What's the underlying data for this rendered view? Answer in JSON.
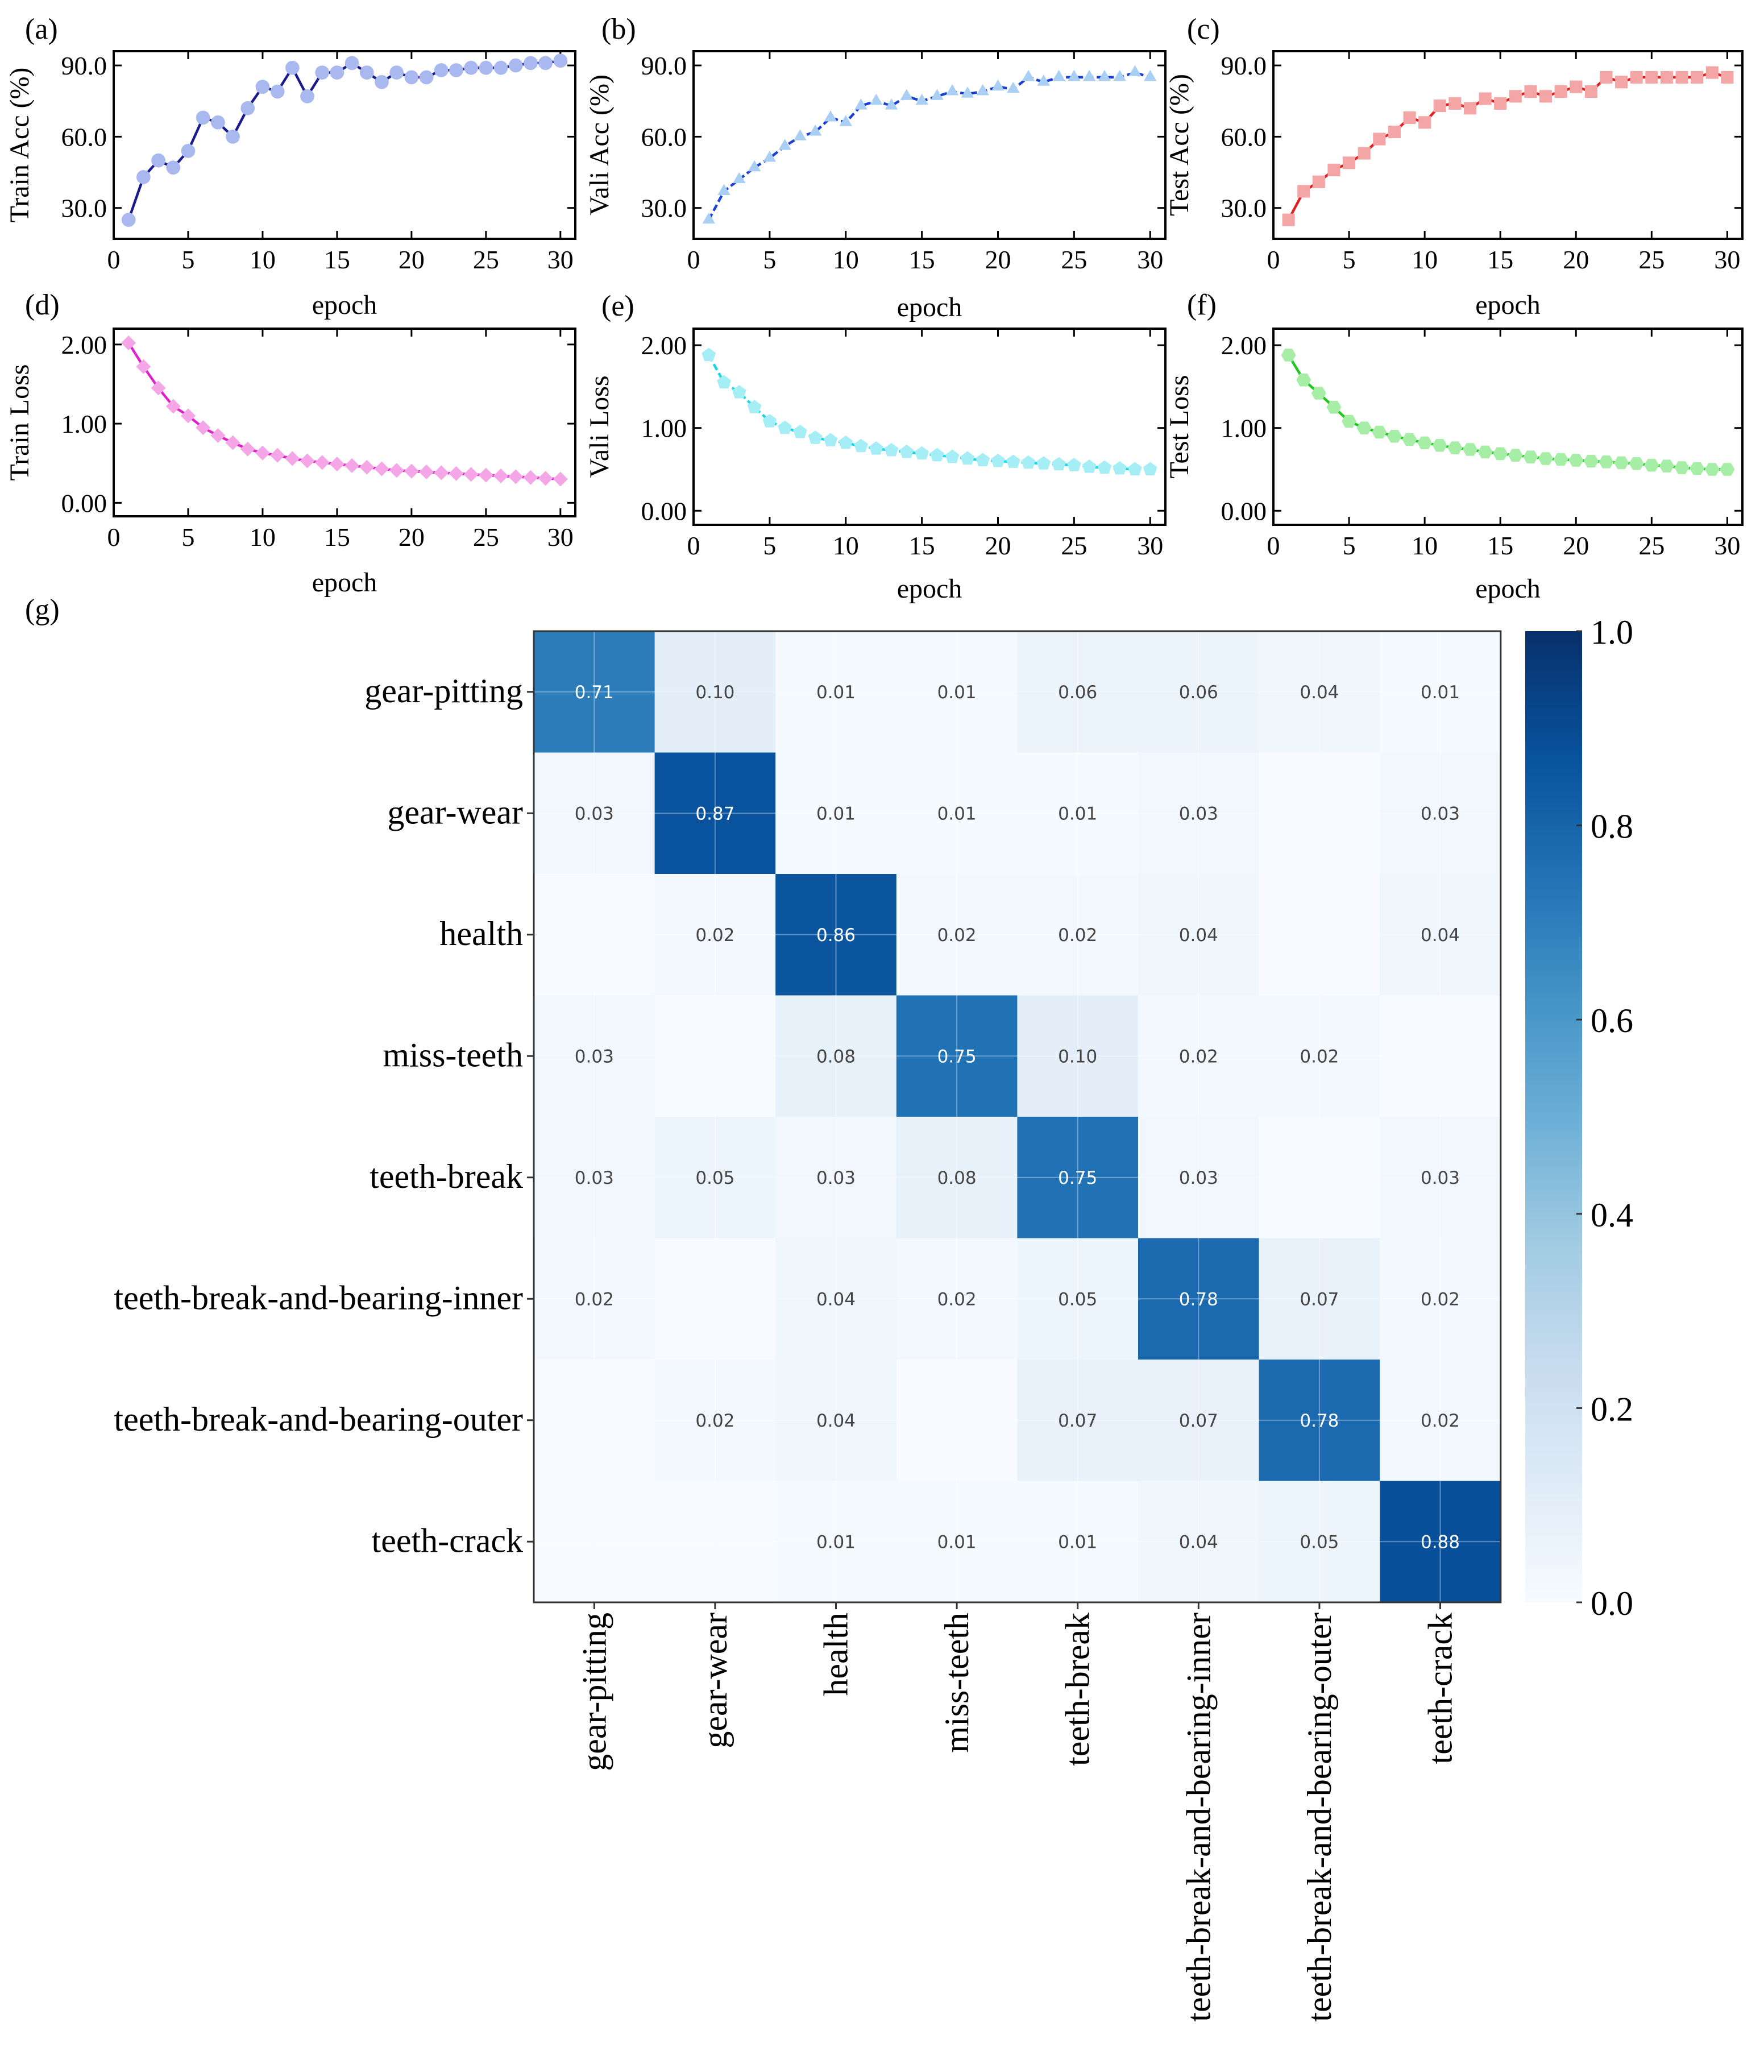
{
  "chart_data": [
    {
      "panel": "(a)",
      "type": "line",
      "title": "",
      "xlabel": "epoch",
      "ylabel": "Train Acc (%)",
      "xlim": [
        0,
        31
      ],
      "ylim": [
        17,
        96
      ],
      "xticks": [
        0,
        5,
        10,
        15,
        20,
        25,
        30
      ],
      "xtick_labels": [
        "0",
        "5",
        "10",
        "15",
        "20",
        "25",
        "30"
      ],
      "yticks": [
        30,
        60,
        90
      ],
      "ytick_labels": [
        "30.0",
        "60.0",
        "90.0"
      ],
      "line_color": "#1a1a8c",
      "marker_color": "#aab8f0",
      "marker": "circle",
      "dashed": false,
      "x": [
        1,
        2,
        3,
        4,
        5,
        6,
        7,
        8,
        9,
        10,
        11,
        12,
        13,
        14,
        15,
        16,
        17,
        18,
        19,
        20,
        21,
        22,
        23,
        24,
        25,
        26,
        27,
        28,
        29,
        30
      ],
      "y": [
        25,
        43,
        50,
        47,
        54,
        68,
        66,
        60,
        72,
        81,
        79,
        89,
        77,
        87,
        87,
        91,
        87,
        83,
        87,
        85,
        85,
        88,
        88,
        89,
        89,
        89,
        90,
        91,
        91,
        92
      ]
    },
    {
      "panel": "(b)",
      "type": "line",
      "title": "",
      "xlabel": "epoch",
      "ylabel": "Vali Acc (%)",
      "xlim": [
        0,
        31
      ],
      "ylim": [
        17,
        96
      ],
      "xticks": [
        0,
        5,
        10,
        15,
        20,
        25,
        30
      ],
      "xtick_labels": [
        "0",
        "5",
        "10",
        "15",
        "20",
        "25",
        "30"
      ],
      "yticks": [
        30,
        60,
        90
      ],
      "ytick_labels": [
        "30.0",
        "60.0",
        "90.0"
      ],
      "line_color": "#1a3fd6",
      "marker_color": "#a9cff5",
      "marker": "triangle",
      "dashed": true,
      "x": [
        1,
        2,
        3,
        4,
        5,
        6,
        7,
        8,
        9,
        10,
        11,
        12,
        13,
        14,
        15,
        16,
        17,
        18,
        19,
        20,
        21,
        22,
        23,
        24,
        25,
        26,
        27,
        28,
        29,
        30
      ],
      "y": [
        25,
        37,
        42,
        47,
        51,
        56,
        60,
        62,
        68,
        66,
        73,
        75,
        73,
        77,
        75,
        77,
        79,
        78,
        79,
        81,
        80,
        85,
        83,
        85,
        85,
        85,
        85,
        85,
        87,
        85
      ]
    },
    {
      "panel": "(c)",
      "type": "line",
      "title": "",
      "xlabel": "epoch",
      "ylabel": "Test Acc (%)",
      "xlim": [
        0,
        31
      ],
      "ylim": [
        17,
        96
      ],
      "xticks": [
        0,
        5,
        10,
        15,
        20,
        25,
        30
      ],
      "xtick_labels": [
        "0",
        "5",
        "10",
        "15",
        "20",
        "25",
        "30"
      ],
      "yticks": [
        30,
        60,
        90
      ],
      "ytick_labels": [
        "30.0",
        "60.0",
        "90.0"
      ],
      "line_color": "#e02020",
      "marker_color": "#f4a6a6",
      "marker": "square",
      "dashed": false,
      "x": [
        1,
        2,
        3,
        4,
        5,
        6,
        7,
        8,
        9,
        10,
        11,
        12,
        13,
        14,
        15,
        16,
        17,
        18,
        19,
        20,
        21,
        22,
        23,
        24,
        25,
        26,
        27,
        28,
        29,
        30
      ],
      "y": [
        25,
        37,
        41,
        46,
        49,
        53,
        59,
        62,
        68,
        66,
        73,
        74,
        72,
        76,
        74,
        77,
        79,
        77,
        79,
        81,
        79,
        85,
        83,
        85,
        85,
        85,
        85,
        85,
        87,
        85
      ]
    },
    {
      "panel": "(d)",
      "type": "line",
      "title": "",
      "xlabel": "epoch",
      "ylabel": "Train Loss",
      "xlim": [
        0,
        31
      ],
      "ylim": [
        -0.17,
        2.2
      ],
      "xticks": [
        0,
        5,
        10,
        15,
        20,
        25,
        30
      ],
      "xtick_labels": [
        "0",
        "5",
        "10",
        "15",
        "20",
        "25",
        "30"
      ],
      "yticks": [
        0,
        1,
        2
      ],
      "ytick_labels": [
        "0.00",
        "1.00",
        "2.00"
      ],
      "line_color": "#e020c8",
      "marker_color": "#f5a6e6",
      "marker": "diamond",
      "dashed": false,
      "x": [
        1,
        2,
        3,
        4,
        5,
        6,
        7,
        8,
        9,
        10,
        11,
        12,
        13,
        14,
        15,
        16,
        17,
        18,
        19,
        20,
        21,
        22,
        23,
        24,
        25,
        26,
        27,
        28,
        29,
        30
      ],
      "y": [
        2.02,
        1.72,
        1.45,
        1.22,
        1.1,
        0.95,
        0.85,
        0.76,
        0.68,
        0.63,
        0.6,
        0.56,
        0.53,
        0.51,
        0.49,
        0.47,
        0.45,
        0.43,
        0.41,
        0.4,
        0.39,
        0.38,
        0.37,
        0.36,
        0.35,
        0.34,
        0.33,
        0.32,
        0.31,
        0.3
      ]
    },
    {
      "panel": "(e)",
      "type": "line",
      "title": "",
      "xlabel": "epoch",
      "ylabel": "Vali Loss",
      "xlim": [
        0,
        31
      ],
      "ylim": [
        -0.17,
        2.2
      ],
      "xticks": [
        0,
        5,
        10,
        15,
        20,
        25,
        30
      ],
      "xtick_labels": [
        "0",
        "5",
        "10",
        "15",
        "20",
        "25",
        "30"
      ],
      "yticks": [
        0,
        1,
        2
      ],
      "ytick_labels": [
        "0.00",
        "1.00",
        "2.00"
      ],
      "line_color": "#18d8e8",
      "marker_color": "#a6eef5",
      "marker": "pentagon",
      "dashed": true,
      "x": [
        1,
        2,
        3,
        4,
        5,
        6,
        7,
        8,
        9,
        10,
        11,
        12,
        13,
        14,
        15,
        16,
        17,
        18,
        19,
        20,
        21,
        22,
        23,
        24,
        25,
        26,
        27,
        28,
        29,
        30
      ],
      "y": [
        1.88,
        1.55,
        1.43,
        1.25,
        1.08,
        1.0,
        0.95,
        0.88,
        0.85,
        0.82,
        0.78,
        0.75,
        0.73,
        0.71,
        0.69,
        0.67,
        0.65,
        0.63,
        0.61,
        0.6,
        0.59,
        0.58,
        0.57,
        0.56,
        0.55,
        0.53,
        0.52,
        0.51,
        0.5,
        0.5
      ]
    },
    {
      "panel": "(f)",
      "type": "line",
      "title": "",
      "xlabel": "epoch",
      "ylabel": "Test Loss",
      "xlim": [
        0,
        31
      ],
      "ylim": [
        -0.17,
        2.2
      ],
      "xticks": [
        0,
        5,
        10,
        15,
        20,
        25,
        30
      ],
      "xtick_labels": [
        "0",
        "5",
        "10",
        "15",
        "20",
        "25",
        "30"
      ],
      "yticks": [
        0,
        1,
        2
      ],
      "ytick_labels": [
        "0.00",
        "1.00",
        "2.00"
      ],
      "line_color": "#20c820",
      "marker_color": "#a6eea6",
      "marker": "hexagon",
      "dashed": false,
      "x": [
        1,
        2,
        3,
        4,
        5,
        6,
        7,
        8,
        9,
        10,
        11,
        12,
        13,
        14,
        15,
        16,
        17,
        18,
        19,
        20,
        21,
        22,
        23,
        24,
        25,
        26,
        27,
        28,
        29,
        30
      ],
      "y": [
        1.88,
        1.58,
        1.42,
        1.25,
        1.08,
        1.0,
        0.95,
        0.9,
        0.86,
        0.82,
        0.79,
        0.76,
        0.74,
        0.71,
        0.69,
        0.67,
        0.65,
        0.63,
        0.62,
        0.61,
        0.6,
        0.59,
        0.58,
        0.57,
        0.55,
        0.54,
        0.52,
        0.51,
        0.5,
        0.5
      ]
    },
    {
      "panel": "(g)",
      "type": "heatmap",
      "title": "",
      "xlabel": "",
      "ylabel": "",
      "row_labels": [
        "gear-pitting",
        "gear-wear",
        "health",
        "miss-teeth",
        "teeth-break",
        "teeth-break-and-bearing-inner",
        "teeth-break-and-bearing-outer",
        "teeth-crack"
      ],
      "col_labels": [
        "gear-pitting",
        "gear-wear",
        "health",
        "miss-teeth",
        "teeth-break",
        "teeth-break-and-bearing-inner",
        "teeth-break-and-bearing-outer",
        "teeth-crack"
      ],
      "values": [
        [
          0.71,
          0.1,
          0.01,
          0.01,
          0.06,
          0.06,
          0.04,
          0.01
        ],
        [
          0.03,
          0.87,
          0.01,
          0.01,
          0.01,
          0.03,
          0.0,
          0.03
        ],
        [
          0.0,
          0.02,
          0.86,
          0.02,
          0.02,
          0.04,
          0.0,
          0.04
        ],
        [
          0.03,
          0.0,
          0.08,
          0.75,
          0.1,
          0.02,
          0.02,
          0.0
        ],
        [
          0.03,
          0.05,
          0.03,
          0.08,
          0.75,
          0.03,
          0.0,
          0.03
        ],
        [
          0.02,
          0.0,
          0.04,
          0.02,
          0.05,
          0.78,
          0.07,
          0.02
        ],
        [
          0.0,
          0.02,
          0.04,
          0.0,
          0.07,
          0.07,
          0.78,
          0.02
        ],
        [
          0.0,
          0.0,
          0.01,
          0.01,
          0.01,
          0.04,
          0.05,
          0.88
        ]
      ],
      "cell_text": [
        [
          "0.71",
          "0.10",
          "0.01",
          "0.01",
          "0.06",
          "0.06",
          "0.04",
          "0.01"
        ],
        [
          "0.03",
          "0.87",
          "0.01",
          "0.01",
          "0.01",
          "0.03",
          "",
          "0.03"
        ],
        [
          "",
          "0.02",
          "0.86",
          "0.02",
          "0.02",
          "0.04",
          "",
          "0.04"
        ],
        [
          "0.03",
          "",
          "0.08",
          "0.75",
          "0.10",
          "0.02",
          "0.02",
          ""
        ],
        [
          "0.03",
          "0.05",
          "0.03",
          "0.08",
          "0.75",
          "0.03",
          "",
          "0.03"
        ],
        [
          "0.02",
          "",
          "0.04",
          "0.02",
          "0.05",
          "0.78",
          "0.07",
          "0.02"
        ],
        [
          "",
          "0.02",
          "0.04",
          "",
          "0.07",
          "0.07",
          "0.78",
          "0.02"
        ],
        [
          "",
          "",
          "0.01",
          "0.01",
          "0.01",
          "0.04",
          "0.05",
          "0.88"
        ]
      ],
      "vmin": 0.0,
      "vmax": 1.0,
      "colormap": "Blues",
      "colorbar_ticks": [
        0.0,
        0.2,
        0.4,
        0.6,
        0.8,
        1.0
      ],
      "colorbar_tick_labels": [
        "0.0",
        "0.2",
        "0.4",
        "0.6",
        "0.8",
        "1.0"
      ]
    }
  ]
}
